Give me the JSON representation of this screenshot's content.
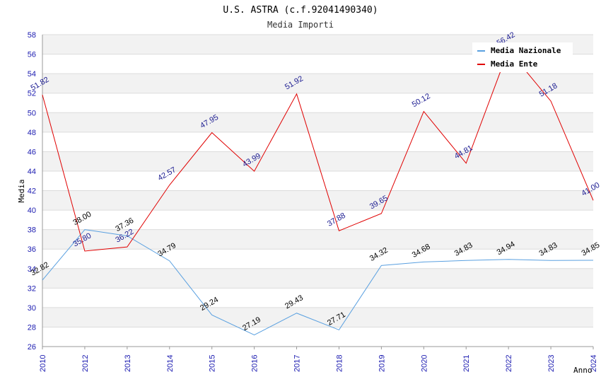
{
  "chart_data": {
    "type": "line",
    "title": "U.S. ASTRA (c.f.92041490340)",
    "subtitle": "Media Importi",
    "xlabel": "Anno",
    "ylabel": "Media",
    "ylim": [
      26,
      58
    ],
    "ystep": 2,
    "yticks": [
      "26",
      "28",
      "30",
      "32",
      "34",
      "36",
      "38",
      "40",
      "42",
      "44",
      "46",
      "48",
      "50",
      "52",
      "54",
      "56",
      "58"
    ],
    "categories": [
      "2010",
      "2012",
      "2013",
      "2014",
      "2015",
      "2016",
      "2017",
      "2018",
      "2019",
      "2020",
      "2021",
      "2022",
      "2023",
      "2024"
    ],
    "legend_position": "top-right",
    "series": [
      {
        "name": "Media Nazionale",
        "color": "#5aa0e0",
        "label_color": "#000000",
        "values": [
          32.82,
          38.0,
          37.36,
          34.79,
          29.24,
          27.19,
          29.43,
          27.71,
          34.32,
          34.68,
          34.83,
          34.94,
          34.83,
          34.85
        ],
        "labels": [
          "32.82",
          "38.00",
          "37.36",
          "34.79",
          "29.24",
          "27.19",
          "29.43",
          "27.71",
          "34.32",
          "34.68",
          "34.83",
          "34.94",
          "34.83",
          "34.85"
        ]
      },
      {
        "name": "Media Ente",
        "color": "#e00000",
        "label_color": "#1a1a90",
        "values": [
          51.82,
          35.8,
          36.22,
          42.57,
          47.95,
          43.99,
          51.92,
          37.88,
          39.65,
          50.12,
          44.81,
          56.42,
          51.18,
          41.0
        ],
        "labels": [
          "51.82",
          "35.80",
          "36.22",
          "42.57",
          "47.95",
          "43.99",
          "51.92",
          "37.88",
          "39.65",
          "50.12",
          "44.81",
          "56.42",
          "51.18",
          "41.00"
        ]
      }
    ]
  }
}
